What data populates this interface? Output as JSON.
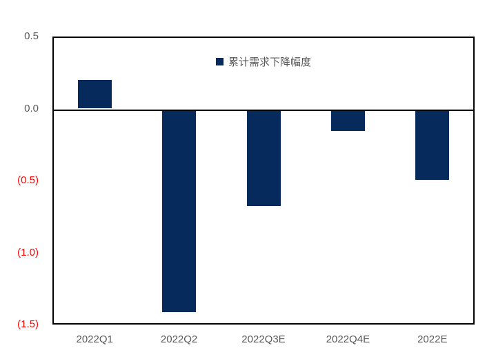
{
  "chart_data": {
    "type": "bar",
    "title": "",
    "legend": "累计需求下降幅度",
    "legend_position": "top-center",
    "grid": false,
    "categories": [
      "2022Q1",
      "2022Q2",
      "2022Q3E",
      "2022Q4E",
      "2022E"
    ],
    "values": [
      0.2,
      -1.41,
      -0.67,
      -0.15,
      -0.49
    ],
    "xlabel": "",
    "ylabel": "",
    "ylim": [
      -1.5,
      0.5
    ],
    "yticks": [
      {
        "value": 0.5,
        "label": "0.5",
        "color": "#595959"
      },
      {
        "value": 0.0,
        "label": "0.0",
        "color": "#595959"
      },
      {
        "value": -0.5,
        "label": "(0.5)",
        "color": "#FF0000"
      },
      {
        "value": -1.0,
        "label": "(1.0)",
        "color": "#FF0000"
      },
      {
        "value": -1.5,
        "label": "(1.5)",
        "color": "#FF0000"
      }
    ],
    "colors": {
      "bar": "#062A5C",
      "axis_border": "#000000",
      "tick_label": "#595959",
      "negative_tick_label": "#FF0000",
      "background": "#FFFFFF"
    }
  }
}
